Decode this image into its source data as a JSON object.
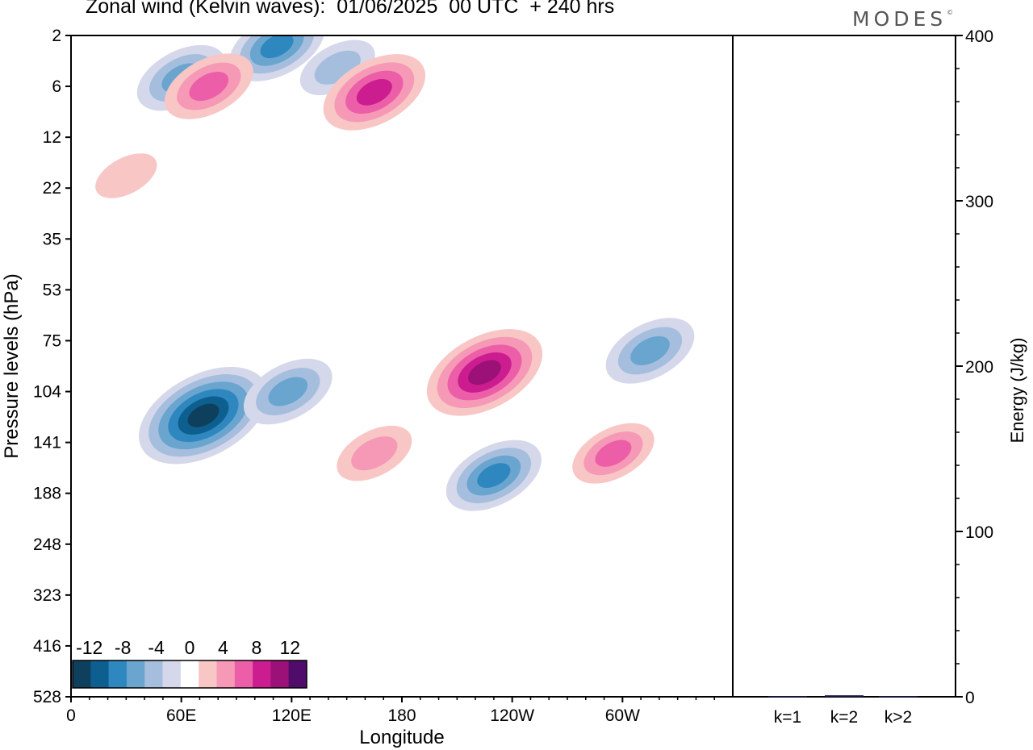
{
  "title": "Zonal wind (Kelvin waves):  01/06/2025  00 UTC  + 240 hrs",
  "brand": "MODES",
  "brand_mark": "©",
  "chart_data": [
    {
      "type": "heatmap",
      "title": "Zonal wind (Kelvin waves):  01/06/2025  00 UTC  + 240 hrs",
      "xlabel": "Longitude",
      "ylabel": "Pressure levels (hPa)",
      "x_ticks": [
        "0",
        "60E",
        "120E",
        "180",
        "120W",
        "60W"
      ],
      "x_range": [
        0,
        360
      ],
      "y_ticks": [
        "2",
        "6",
        "12",
        "22",
        "35",
        "53",
        "75",
        "104",
        "141",
        "188",
        "248",
        "323",
        "416",
        "528"
      ],
      "y_axis": "pressure levels, log-like, inverted (2 hPa at top, 528 hPa at bottom)",
      "grid": false,
      "colorbar": {
        "labels": [
          "-12",
          "-8",
          "-4",
          "0",
          "4",
          "8",
          "12"
        ],
        "levels": [
          -14,
          -12,
          -10,
          -8,
          -6,
          -4,
          -2,
          2,
          4,
          6,
          8,
          10,
          12,
          14
        ],
        "colors": [
          "#0e3f5c",
          "#0d5f90",
          "#2f87bf",
          "#6aa5cf",
          "#a6bede",
          "#d5d8ea",
          "#ffffff",
          "#f9c6c6",
          "#f699b6",
          "#ec5fa8",
          "#cc1d90",
          "#9c1177",
          "#4f0c6b"
        ],
        "placement": "bottom-left"
      },
      "features": [
        {
          "sign": "negative",
          "longitude": 72,
          "pressure": 120,
          "peak": -13
        },
        {
          "sign": "negative",
          "longitude": 118,
          "pressure": 104,
          "peak": -7
        },
        {
          "sign": "negative",
          "longitude": 230,
          "pressure": 170,
          "peak": -8
        },
        {
          "sign": "negative",
          "longitude": 315,
          "pressure": 80,
          "peak": -7
        },
        {
          "sign": "negative",
          "longitude": 112,
          "pressure": 2.5,
          "peak": -8
        },
        {
          "sign": "negative",
          "longitude": 60,
          "pressure": 5,
          "peak": -7
        },
        {
          "sign": "negative",
          "longitude": 145,
          "pressure": 4,
          "peak": -5
        },
        {
          "sign": "positive",
          "longitude": 225,
          "pressure": 92,
          "peak": 11
        },
        {
          "sign": "positive",
          "longitude": 295,
          "pressure": 150,
          "peak": 6
        },
        {
          "sign": "positive",
          "longitude": 165,
          "pressure": 150,
          "peak": 5
        },
        {
          "sign": "positive",
          "longitude": 165,
          "pressure": 6.5,
          "peak": 9
        },
        {
          "sign": "positive",
          "longitude": 75,
          "pressure": 6,
          "peak": 7
        },
        {
          "sign": "positive",
          "longitude": 30,
          "pressure": 19,
          "peak": 3
        }
      ]
    },
    {
      "type": "bar",
      "xlabel": "",
      "ylabel": "Energy (J/kg)",
      "categories": [
        "k=1",
        "k=2",
        "k>2"
      ],
      "values": [
        0.4,
        0.9,
        0.4
      ],
      "ylim": [
        0,
        400
      ],
      "y_ticks": [
        "0",
        "100",
        "200",
        "300",
        "400"
      ],
      "bar_color": "#1a1a4a"
    }
  ]
}
